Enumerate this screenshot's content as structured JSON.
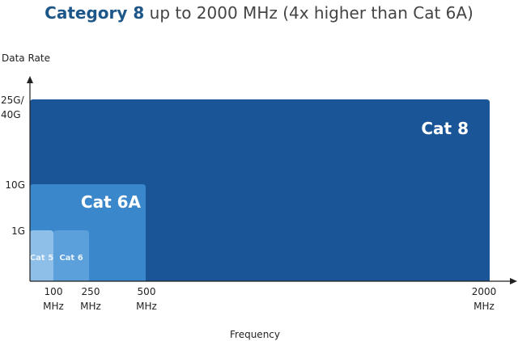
{
  "chart_data": {
    "type": "bar",
    "title_bold": "Category 8",
    "title_rest": " up to 2000 MHz (4x higher than Cat 6A)",
    "ylabel": "Data Rate",
    "xlabel": "Frequency",
    "x_ticks": [
      {
        "value": 100,
        "line1": "100",
        "line2": "MHz"
      },
      {
        "value": 250,
        "line1": "250",
        "line2": "MHz"
      },
      {
        "value": 500,
        "line1": "500",
        "line2": "MHz"
      },
      {
        "value": 2000,
        "line1": "2000",
        "line2": "MHz"
      }
    ],
    "y_ticks": [
      {
        "value": "1G",
        "line1": "1G",
        "line2": ""
      },
      {
        "value": "10G",
        "line1": "10G",
        "line2": ""
      },
      {
        "value": "25G/40G",
        "line1": "25G/",
        "line2": "40G"
      }
    ],
    "series": [
      {
        "name": "Cat 8",
        "frequency_mhz": 2000,
        "data_rate": "25G/40G",
        "color": "#1a5598"
      },
      {
        "name": "Cat 6A",
        "frequency_mhz": 500,
        "data_rate": "10G",
        "color": "#3a87cb"
      },
      {
        "name": "Cat 6",
        "frequency_mhz": 250,
        "data_rate": "1G",
        "color": "#5ba0da"
      },
      {
        "name": "Cat 5",
        "frequency_mhz": 100,
        "data_rate": "1G",
        "color": "#8dbfe9"
      }
    ]
  }
}
